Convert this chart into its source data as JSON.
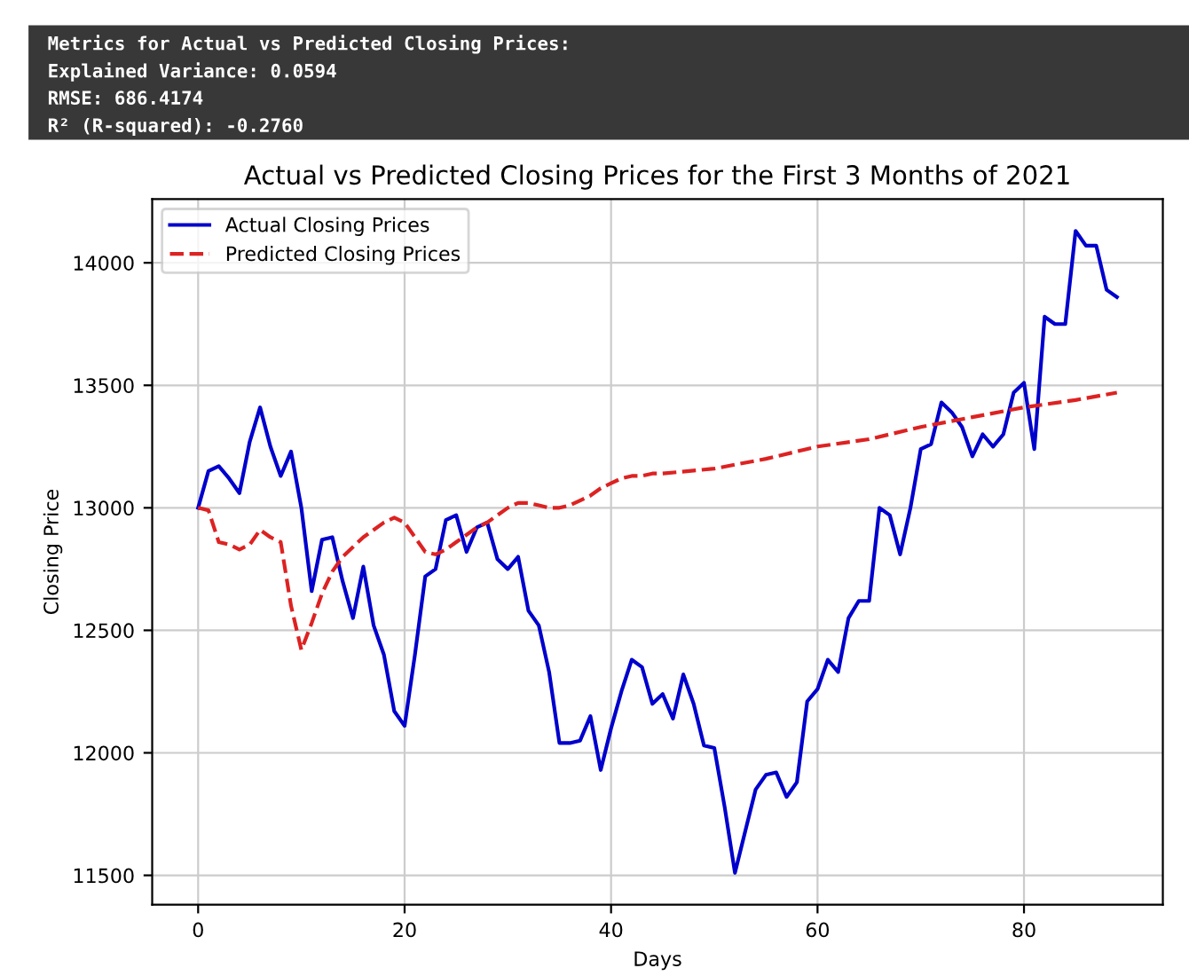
{
  "chart_data": {
    "type": "line",
    "title": "Actual vs Predicted Closing Prices for the First 3 Months of 2021",
    "xlabel": "Days",
    "ylabel": "Closing Price",
    "annotations": [
      "Metrics for Actual vs Predicted Closing Prices:",
      "Explained Variance: 0.0594",
      "RMSE: 686.4174",
      "R² (R-squared): -0.2760"
    ],
    "x": [
      0,
      1,
      2,
      3,
      4,
      5,
      6,
      7,
      8,
      9,
      10,
      11,
      12,
      13,
      14,
      15,
      16,
      17,
      18,
      19,
      20,
      21,
      22,
      23,
      24,
      25,
      26,
      27,
      28,
      29,
      30,
      31,
      32,
      33,
      34,
      35,
      36,
      37,
      38,
      39,
      40,
      41,
      42,
      43,
      44,
      45,
      46,
      47,
      48,
      49,
      50,
      51,
      52,
      53,
      54,
      55,
      56,
      57,
      58,
      59,
      60,
      61,
      62,
      63,
      64,
      65,
      66,
      67,
      68,
      69,
      70,
      71,
      72,
      73,
      74,
      75,
      76,
      77,
      78,
      79,
      80,
      81,
      82,
      83,
      84,
      85,
      86,
      87,
      88,
      89
    ],
    "series": [
      {
        "name": "Actual Closing Prices",
        "color": "#0000cc",
        "line_style": "solid",
        "values": [
          13000,
          13150,
          13170,
          13120,
          13060,
          13270,
          13410,
          13250,
          13130,
          13230,
          13000,
          12660,
          12870,
          12880,
          12700,
          12550,
          12760,
          12520,
          12400,
          12170,
          12110,
          12400,
          12720,
          12750,
          12950,
          12970,
          12820,
          12920,
          12940,
          12790,
          12750,
          12800,
          12580,
          12520,
          12330,
          12040,
          12040,
          12050,
          12150,
          11930,
          12100,
          12250,
          12380,
          12350,
          12200,
          12240,
          12140,
          12320,
          12200,
          12030,
          12020,
          11780,
          11510,
          11680,
          11850,
          11910,
          11920,
          11820,
          11880,
          12210,
          12260,
          12380,
          12330,
          12550,
          12620,
          12620,
          13000,
          12970,
          12810,
          13000,
          13240,
          13260,
          13430,
          13390,
          13330,
          13210,
          13300,
          13250,
          13300,
          13470,
          13510,
          13240,
          13780,
          13750,
          13750,
          14130,
          14070,
          14070,
          13890,
          13860
        ]
      },
      {
        "name": "Predicted Closing Prices",
        "color": "#dd2222",
        "line_style": "dashed",
        "x": [
          0,
          1,
          2,
          3,
          4,
          5,
          6,
          7,
          8,
          9,
          10,
          11,
          12,
          13,
          14,
          15,
          16,
          17,
          18,
          19,
          20,
          21,
          22,
          23,
          24,
          25,
          26,
          27,
          28,
          29,
          30,
          31,
          32,
          33,
          34,
          35,
          36,
          37,
          38,
          39,
          40,
          41,
          42,
          43,
          44,
          45,
          50,
          55,
          60,
          65,
          70,
          75,
          80,
          85,
          89
        ],
        "values": [
          13000,
          12990,
          12860,
          12850,
          12830,
          12850,
          12910,
          12880,
          12860,
          12600,
          12420,
          12530,
          12650,
          12740,
          12800,
          12840,
          12880,
          12910,
          12940,
          12960,
          12940,
          12880,
          12820,
          12810,
          12830,
          12860,
          12890,
          12920,
          12940,
          12970,
          13000,
          13020,
          13020,
          13010,
          13000,
          13000,
          13010,
          13030,
          13050,
          13080,
          13100,
          13120,
          13130,
          13130,
          13140,
          13140,
          13160,
          13200,
          13250,
          13280,
          13330,
          13370,
          13410,
          13440,
          13470
        ]
      }
    ],
    "xlim": [
      -4.45,
      93.45
    ],
    "xticks": [
      0,
      20,
      40,
      60,
      80
    ],
    "ylim": [
      11380,
      14260
    ],
    "yticks": [
      11500,
      12000,
      12500,
      13000,
      13500,
      14000
    ],
    "grid": true,
    "legend": "top left"
  }
}
